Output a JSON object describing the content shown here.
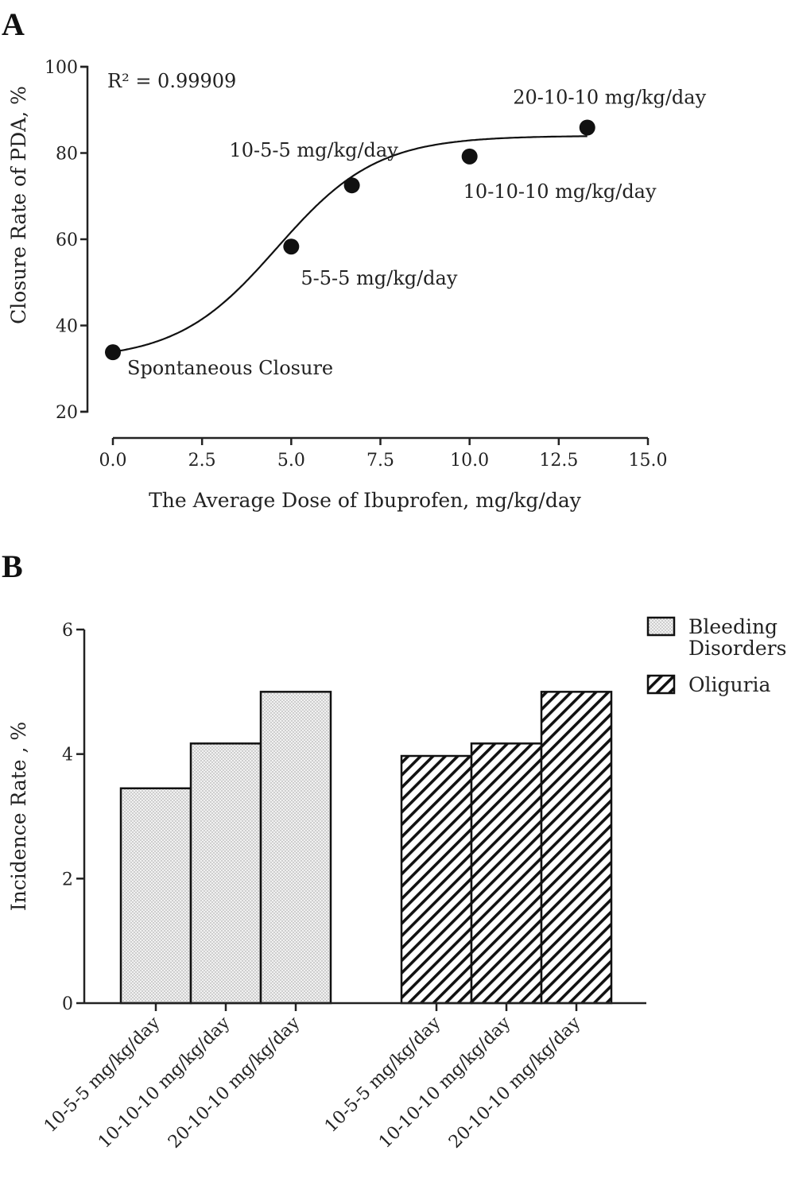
{
  "chart_data": [
    {
      "panel": "A",
      "type": "scatter",
      "fit": "sigmoid",
      "r2_label": "R² = 0.99909",
      "xlabel": "The Average Dose of Ibuprofen, mg/kg/day",
      "ylabel": "Closure Rate of PDA, %",
      "xlim": [
        0,
        15
      ],
      "ylim": [
        20,
        100
      ],
      "xticks": [
        "0.0",
        "2.5",
        "5.0",
        "7.5",
        "10.0",
        "12.5",
        "15.0"
      ],
      "yticks": [
        "20",
        "40",
        "60",
        "80",
        "100"
      ],
      "points": [
        {
          "x": 0,
          "y": 33.8,
          "label": "Spontaneous Closure"
        },
        {
          "x": 5,
          "y": 58.3,
          "label": "5-5-5 mg/kg/day"
        },
        {
          "x": 6.7,
          "y": 72.5,
          "label": "10-5-5 mg/kg/day"
        },
        {
          "x": 10,
          "y": 79.2,
          "label": "10-10-10 mg/kg/day"
        },
        {
          "x": 13.3,
          "y": 85.9,
          "label": "20-10-10 mg/kg/day"
        }
      ]
    },
    {
      "panel": "B",
      "type": "bar",
      "ylabel": "Incidence Rate , %",
      "ylim": [
        0,
        6
      ],
      "yticks": [
        "0",
        "2",
        "4",
        "6"
      ],
      "legend_position": "top-right",
      "categories": [
        "10-5-5 mg/kg/day",
        "10-10-10 mg/kg/day",
        "20-10-10 mg/kg/day"
      ],
      "series": [
        {
          "name": "Bleeding Disorders",
          "legend_lines": [
            "Bleeding",
            "Disorders"
          ],
          "pattern": "dots",
          "values": [
            3.45,
            4.17,
            5.0
          ]
        },
        {
          "name": "Oliguria",
          "legend_lines": [
            "Oliguria"
          ],
          "pattern": "hatch",
          "values": [
            3.97,
            4.17,
            5.0
          ]
        }
      ]
    }
  ]
}
